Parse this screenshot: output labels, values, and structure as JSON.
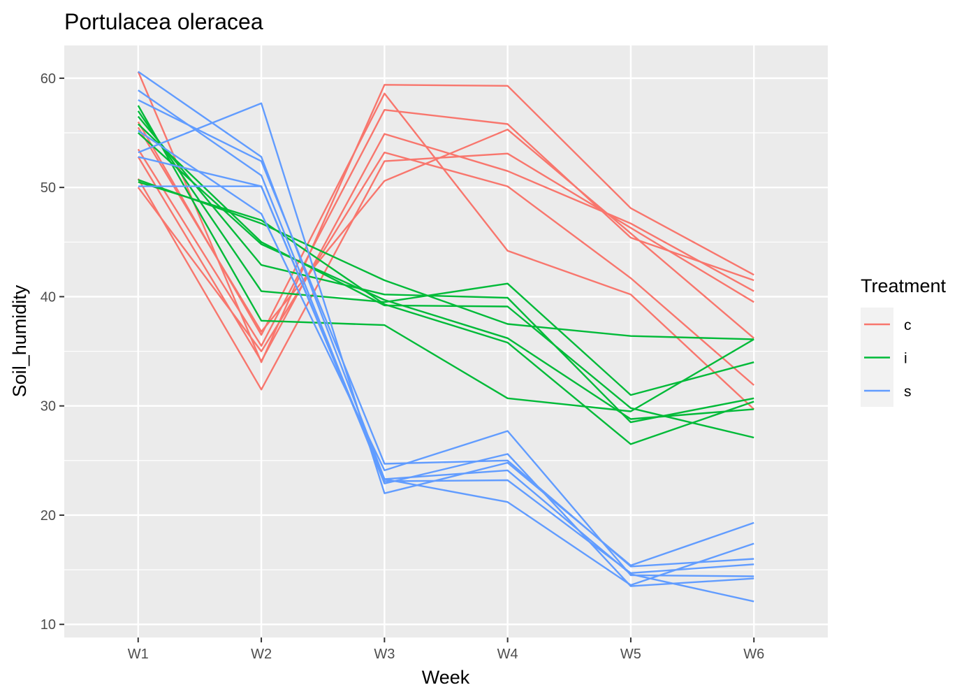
{
  "chart_data": {
    "type": "line",
    "title": "Portulacea oleracea",
    "xlabel": "Week",
    "ylabel": "Soil_humidity",
    "categories": [
      "W1",
      "W2",
      "W3",
      "W4",
      "W5",
      "W6"
    ],
    "ylim": [
      8.8,
      63
    ],
    "yticks": [
      10,
      20,
      30,
      40,
      50,
      60
    ],
    "grid": true,
    "legend": {
      "title": "Treatment",
      "placement": "right",
      "entries": [
        {
          "label": "c",
          "color": "#F8766D"
        },
        {
          "label": "i",
          "color": "#00BA38"
        },
        {
          "label": "s",
          "color": "#619CFF"
        }
      ]
    },
    "series": [
      {
        "group": "c",
        "color": "#F8766D",
        "values": [
          60.6,
          34.0,
          59.4,
          59.3,
          48.1,
          42.0
        ]
      },
      {
        "group": "c",
        "color": "#F8766D",
        "values": [
          56.0,
          36.5,
          58.6,
          44.2,
          40.2,
          29.7
        ]
      },
      {
        "group": "c",
        "color": "#F8766D",
        "values": [
          53.5,
          35.5,
          57.1,
          55.8,
          45.4,
          41.5
        ]
      },
      {
        "group": "c",
        "color": "#F8766D",
        "values": [
          52.8,
          34.1,
          54.9,
          51.5,
          46.7,
          40.5
        ]
      },
      {
        "group": "c",
        "color": "#F8766D",
        "values": [
          50.0,
          35.0,
          53.2,
          50.1,
          41.7,
          31.9
        ]
      },
      {
        "group": "c",
        "color": "#F8766D",
        "values": [
          50.8,
          31.5,
          52.4,
          53.1,
          46.3,
          39.5
        ]
      },
      {
        "group": "c",
        "color": "#F8766D",
        "values": [
          55.5,
          36.8,
          50.6,
          55.3,
          45.8,
          36.2
        ]
      },
      {
        "group": "i",
        "color": "#00BA38",
        "values": [
          57.5,
          37.8,
          37.4,
          30.7,
          29.5,
          36.1
        ]
      },
      {
        "group": "i",
        "color": "#00BA38",
        "values": [
          57.0,
          40.5,
          39.5,
          41.2,
          31.0,
          34.0
        ]
      },
      {
        "group": "i",
        "color": "#00BA38",
        "values": [
          56.5,
          42.9,
          40.2,
          39.9,
          28.5,
          30.7
        ]
      },
      {
        "group": "i",
        "color": "#00BA38",
        "values": [
          55.8,
          45.0,
          39.2,
          39.1,
          29.8,
          27.1
        ]
      },
      {
        "group": "i",
        "color": "#00BA38",
        "values": [
          50.7,
          46.7,
          41.5,
          37.5,
          36.4,
          36.1
        ]
      },
      {
        "group": "i",
        "color": "#00BA38",
        "values": [
          50.5,
          47.0,
          39.3,
          35.8,
          26.5,
          30.4
        ]
      },
      {
        "group": "i",
        "color": "#00BA38",
        "values": [
          55.0,
          44.8,
          39.7,
          36.2,
          28.8,
          29.7
        ]
      },
      {
        "group": "s",
        "color": "#619CFF",
        "values": [
          60.6,
          52.8,
          23.3,
          24.1,
          14.6,
          12.1
        ]
      },
      {
        "group": "s",
        "color": "#619CFF",
        "values": [
          58.9,
          51.1,
          22.9,
          25.6,
          13.5,
          14.2
        ]
      },
      {
        "group": "s",
        "color": "#619CFF",
        "values": [
          58.0,
          52.4,
          24.7,
          25.0,
          15.3,
          16.0
        ]
      },
      {
        "group": "s",
        "color": "#619CFF",
        "values": [
          53.2,
          57.7,
          22.0,
          24.8,
          15.4,
          19.3
        ]
      },
      {
        "group": "s",
        "color": "#619CFF",
        "values": [
          55.2,
          47.6,
          24.1,
          27.7,
          14.5,
          14.4
        ]
      },
      {
        "group": "s",
        "color": "#619CFF",
        "values": [
          52.8,
          50.1,
          23.3,
          21.2,
          13.6,
          17.4
        ]
      },
      {
        "group": "s",
        "color": "#619CFF",
        "values": [
          50.1,
          50.1,
          23.1,
          23.2,
          14.7,
          15.5
        ]
      }
    ]
  }
}
